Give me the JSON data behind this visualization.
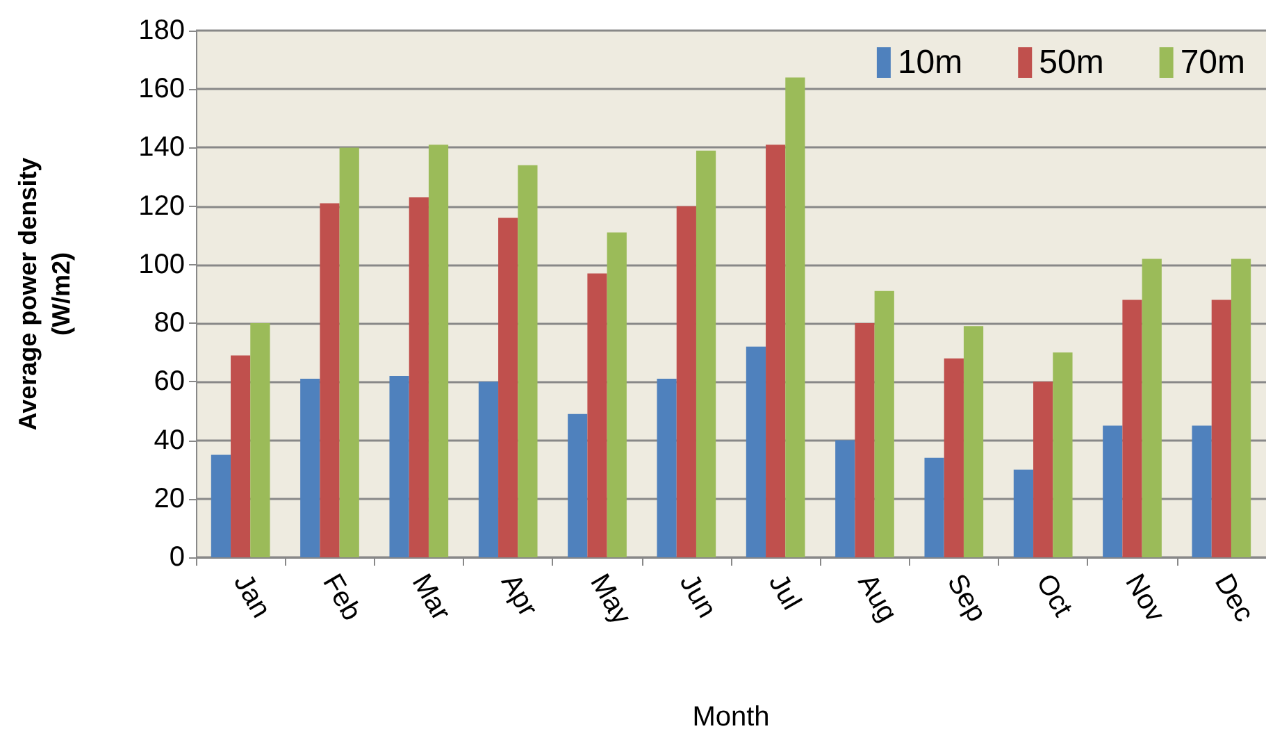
{
  "chart_data": {
    "type": "bar",
    "xlabel": "Month",
    "ylabel": "Average power density\n(W/m2)",
    "categories": [
      "Jan",
      "Feb",
      "Mar",
      "Apr",
      "May",
      "Jun",
      "Jul",
      "Aug",
      "Sep",
      "Oct",
      "Nov",
      "Dec"
    ],
    "series": [
      {
        "name": "10m",
        "color": "#4f81bd",
        "values": [
          35,
          61,
          62,
          60,
          49,
          61,
          72,
          40,
          34,
          30,
          45,
          45
        ]
      },
      {
        "name": "50m",
        "color": "#c0504d",
        "values": [
          69,
          121,
          123,
          116,
          97,
          120,
          141,
          80,
          68,
          60,
          88,
          88
        ]
      },
      {
        "name": "70m",
        "color": "#9bbb59",
        "values": [
          80,
          140,
          141,
          134,
          111,
          139,
          164,
          91,
          79,
          70,
          102,
          102
        ]
      }
    ],
    "ylim": [
      0,
      180
    ],
    "yticks": [
      0,
      20,
      40,
      60,
      80,
      100,
      120,
      140,
      160,
      180
    ],
    "grid": "y",
    "legend": "top right"
  }
}
